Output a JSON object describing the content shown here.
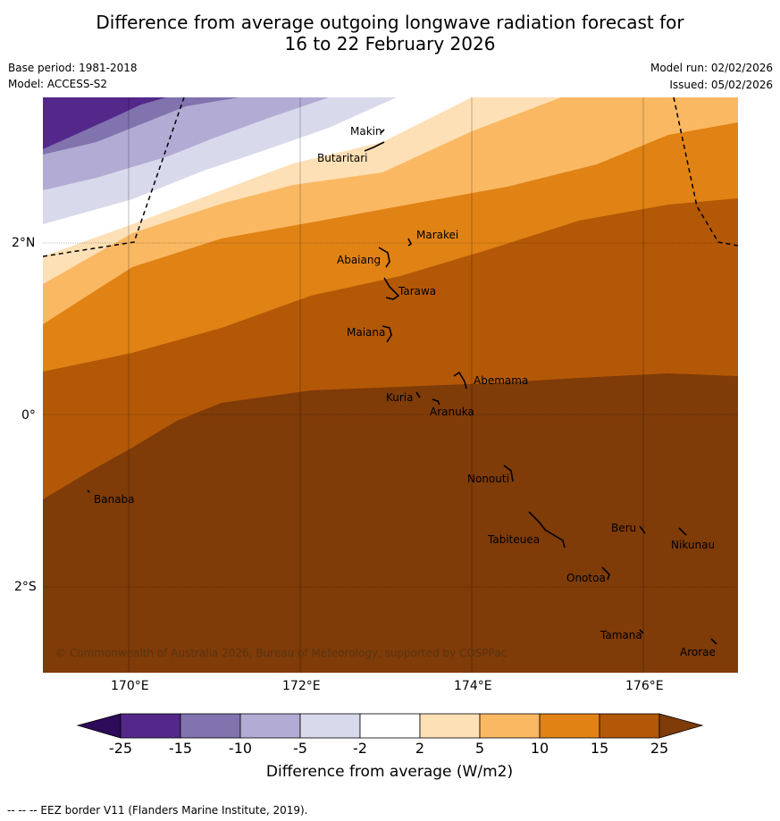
{
  "title_line1": "Difference from average outgoing longwave radiation forecast for",
  "title_line2": "16 to 22 February 2026",
  "base_period": "Base period: 1981-2018",
  "model": "Model: ACCESS-S2",
  "model_run": "Model run: 02/02/2026",
  "issued": "Issued: 05/02/2026",
  "copyright": "© Commonwealth of Australia 2026, Bureau of Meteorology, supported by COSPPac",
  "lat_ticks": [
    "2°N",
    "0°",
    "2°S"
  ],
  "lon_ticks": [
    "170°E",
    "172°E",
    "174°E",
    "176°E"
  ],
  "islands": [
    "Makin",
    "Butaritari",
    "Marakei",
    "Abaiang",
    "Tarawa",
    "Maiana",
    "Abemama",
    "Kuria",
    "Aranuka",
    "Banaba",
    "Nonouti",
    "Beru",
    "Tabiteuea",
    "Nikunau",
    "Onotoa",
    "Tamana",
    "Arorae"
  ],
  "colorbar": {
    "labels": [
      "-25",
      "-15",
      "-10",
      "-5",
      "-2",
      "2",
      "5",
      "10",
      "15",
      "25"
    ],
    "colors": [
      "#2d0a5a",
      "#54288a",
      "#8073ae",
      "#b2abd4",
      "#d8d9eb",
      "#ffffff",
      "#fee0b6",
      "#fab862",
      "#e08214",
      "#b35806",
      "#7f3b08"
    ],
    "title": "Difference from average (W/m2)"
  },
  "footer": "--  --  -- EEZ border V11 (Flanders Marine Institute, 2019)."
}
